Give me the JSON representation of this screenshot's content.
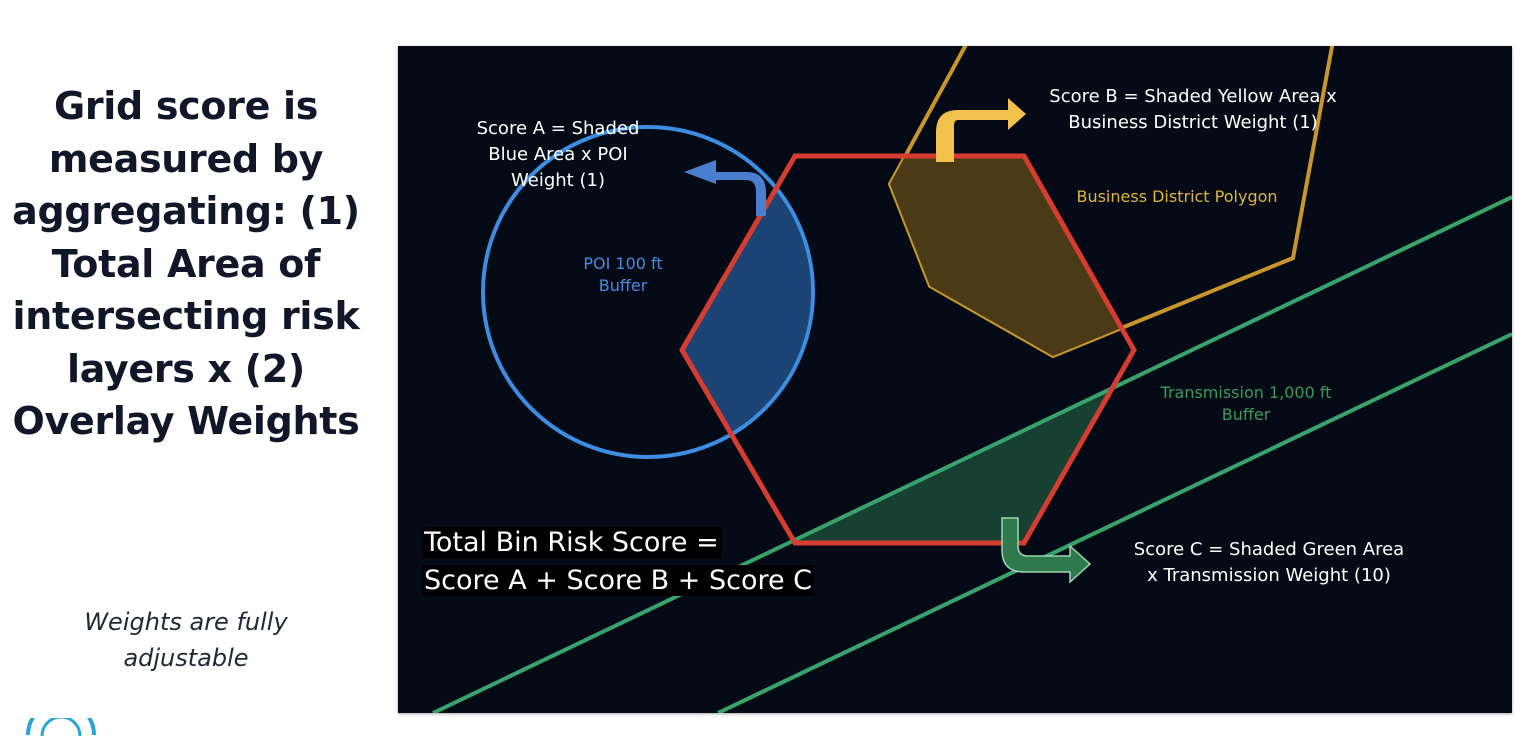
{
  "headline": [
    "Grid score is",
    "measured by",
    "aggregating:  (1)",
    "Total Area of",
    "intersecting risk",
    "layers x  (2)",
    "Overlay Weights"
  ],
  "note": [
    "Weights are fully",
    "adjustable"
  ],
  "diagram": {
    "score_a": [
      "Score A = Shaded",
      "Blue Area x POI",
      "Weight (1)"
    ],
    "score_b": [
      "Score B = Shaded Yellow Area x",
      "Business District Weight (1)"
    ],
    "score_c": [
      "Score C = Shaded Green Area",
      "x Transmission Weight (10)"
    ],
    "poi_label": [
      "POI 100 ft",
      "Buffer"
    ],
    "business_label": "Business District Polygon",
    "transmission_label": [
      "Transmission 1,000 ft",
      "Buffer"
    ],
    "total": [
      "Total Bin Risk Score =",
      "Score A + Score B + Score C"
    ]
  },
  "colors": {
    "background": "#050b16",
    "poi": "#3d8ee3",
    "business": "#c9962b",
    "transmission": "#3aa26b",
    "hexagon": "#d63c2f",
    "arrow_a": "#4a7fd0",
    "arrow_b": "#f1c14b",
    "arrow_c": "#2f7a4d"
  }
}
